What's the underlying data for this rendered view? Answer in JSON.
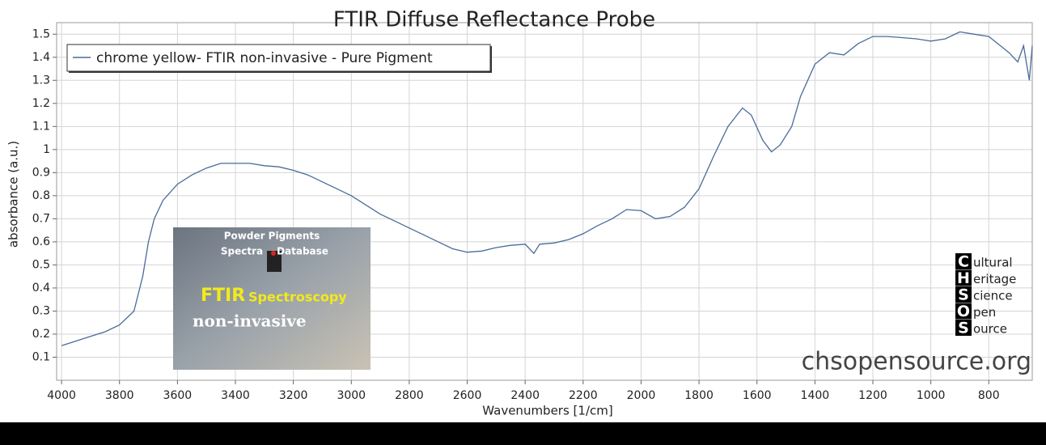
{
  "chart_data": {
    "type": "line",
    "title": "FTIR Diffuse Reflectance Probe",
    "x_label": "Wavenumbers [1/cm]",
    "y_label": "absorbance (a.u.)",
    "xlim": [
      4017,
      650
    ],
    "ylim": [
      0,
      1.55
    ],
    "xticks": [
      4000,
      3800,
      3600,
      3400,
      3200,
      3000,
      2800,
      2600,
      2400,
      2200,
      2000,
      1800,
      1600,
      1400,
      1200,
      1000,
      800
    ],
    "yticks": [
      0.1,
      0.2,
      0.3,
      0.4,
      0.5,
      0.6,
      0.7,
      0.8,
      0.9,
      1,
      1.1,
      1.2,
      1.3,
      1.4,
      1.5
    ],
    "grid": true,
    "legend": "top-left",
    "series": [
      {
        "name": "chrome yellow- FTIR non-invasive - Pure Pigment",
        "color": "#4a6b9a",
        "x": [
          4000,
          3950,
          3900,
          3850,
          3800,
          3750,
          3720,
          3700,
          3680,
          3650,
          3600,
          3550,
          3500,
          3450,
          3400,
          3350,
          3300,
          3250,
          3200,
          3150,
          3100,
          3050,
          3000,
          2950,
          2900,
          2850,
          2800,
          2750,
          2700,
          2650,
          2600,
          2550,
          2500,
          2450,
          2400,
          2370,
          2350,
          2300,
          2250,
          2200,
          2150,
          2100,
          2050,
          2000,
          1950,
          1900,
          1850,
          1800,
          1750,
          1700,
          1650,
          1620,
          1580,
          1550,
          1520,
          1480,
          1450,
          1400,
          1350,
          1300,
          1250,
          1200,
          1150,
          1100,
          1050,
          1000,
          950,
          900,
          850,
          800,
          760,
          730,
          700,
          680,
          660,
          650
        ],
        "values": [
          0.15,
          0.17,
          0.19,
          0.21,
          0.24,
          0.3,
          0.45,
          0.6,
          0.7,
          0.78,
          0.85,
          0.89,
          0.92,
          0.94,
          0.94,
          0.94,
          0.93,
          0.925,
          0.91,
          0.89,
          0.86,
          0.83,
          0.8,
          0.76,
          0.72,
          0.69,
          0.66,
          0.63,
          0.6,
          0.57,
          0.555,
          0.56,
          0.575,
          0.585,
          0.59,
          0.55,
          0.59,
          0.595,
          0.61,
          0.635,
          0.67,
          0.7,
          0.74,
          0.735,
          0.7,
          0.71,
          0.75,
          0.83,
          0.97,
          1.1,
          1.18,
          1.15,
          1.04,
          0.99,
          1.02,
          1.1,
          1.23,
          1.37,
          1.42,
          1.41,
          1.46,
          1.49,
          1.49,
          1.485,
          1.48,
          1.47,
          1.48,
          1.51,
          1.5,
          1.49,
          1.45,
          1.42,
          1.38,
          1.45,
          1.3,
          1.45
        ]
      }
    ],
    "watermark": "chsopensource.org",
    "logo": {
      "letters": [
        "C",
        "H",
        "S",
        "O",
        "S"
      ],
      "words": [
        "ultural",
        "eritage",
        "cience",
        "pen",
        "ource"
      ]
    },
    "inset": {
      "lines": [
        "Powder Pigments",
        "Spectra",
        "Database",
        "FTIR",
        "Spectroscopy",
        "non-invasive"
      ]
    }
  }
}
